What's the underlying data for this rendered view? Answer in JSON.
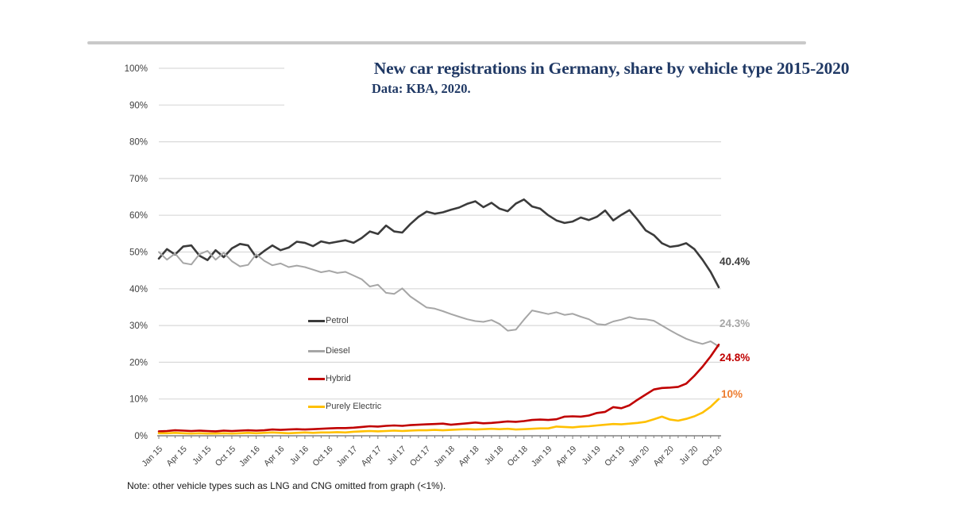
{
  "chart_data": {
    "type": "line",
    "title": "New car registrations in Germany, share by vehicle type 2015-2020",
    "subtitle": "Data: KBA, 2020.",
    "ylim": [
      0,
      100
    ],
    "grid": true,
    "legend_position": "center-left",
    "y_tick_labels": [
      "0%",
      "10%",
      "20%",
      "30%",
      "40%",
      "50%",
      "60%",
      "70%",
      "80%",
      "90%",
      "100%"
    ],
    "x_tick_labels": [
      "Jan 15",
      "Apr 15",
      "Jul 15",
      "Oct 15",
      "Jan 16",
      "Apr 16",
      "Jul 16",
      "Oct 16",
      "Jan 17",
      "Apr 17",
      "Jul 17",
      "Oct 17",
      "Jan 18",
      "Apr 18",
      "Jul 18",
      "Oct 18",
      "Jan 19",
      "Apr 19",
      "Jul 19",
      "Oct 19",
      "Jan 20",
      "Apr 20",
      "Jul 20",
      "Oct 20"
    ],
    "x_unit": "month",
    "series": [
      {
        "name": "Petrol",
        "color": "#3b3b3b",
        "end_label": "40.4%",
        "end_label_color": "#404040",
        "values": [
          48.2,
          50.8,
          49.3,
          51.5,
          51.8,
          49.0,
          47.8,
          50.5,
          48.6,
          51.0,
          52.2,
          51.8,
          48.6,
          50.3,
          51.8,
          50.5,
          51.2,
          52.8,
          52.5,
          51.6,
          52.9,
          52.4,
          52.8,
          53.2,
          52.5,
          53.8,
          55.6,
          54.9,
          57.2,
          55.6,
          55.3,
          57.6,
          59.6,
          61.0,
          60.4,
          60.8,
          61.5,
          62.1,
          63.1,
          63.8,
          62.2,
          63.4,
          61.8,
          61.1,
          63.2,
          64.3,
          62.4,
          61.8,
          60.0,
          58.6,
          57.9,
          58.3,
          59.4,
          58.7,
          59.6,
          61.3,
          58.6,
          60.1,
          61.4,
          58.8,
          55.9,
          54.6,
          52.4,
          51.4,
          51.7,
          52.4,
          50.8,
          47.9,
          44.6,
          40.4
        ]
      },
      {
        "name": "Diesel",
        "color": "#a6a6a6",
        "end_label": "24.3%",
        "end_label_color": "#a6a6a6",
        "values": [
          50.0,
          47.9,
          49.6,
          47.0,
          46.6,
          49.4,
          50.3,
          47.9,
          49.8,
          47.5,
          46.1,
          46.5,
          49.4,
          47.6,
          46.4,
          46.9,
          45.9,
          46.3,
          45.9,
          45.2,
          44.5,
          44.9,
          44.3,
          44.6,
          43.6,
          42.6,
          40.6,
          41.1,
          38.9,
          38.6,
          40.1,
          37.9,
          36.4,
          34.9,
          34.6,
          33.9,
          33.1,
          32.4,
          31.7,
          31.2,
          31.0,
          31.5,
          30.4,
          28.6,
          28.9,
          31.6,
          34.1,
          33.6,
          33.1,
          33.6,
          32.9,
          33.2,
          32.4,
          31.7,
          30.4,
          30.2,
          31.1,
          31.6,
          32.3,
          31.8,
          31.7,
          31.3,
          30.0,
          28.7,
          27.5,
          26.4,
          25.6,
          25.0,
          25.7,
          24.3
        ]
      },
      {
        "name": "Hybrid",
        "color": "#c00000",
        "end_label": "24.8%",
        "end_label_color": "#c00000",
        "values": [
          1.2,
          1.3,
          1.5,
          1.4,
          1.3,
          1.4,
          1.3,
          1.2,
          1.4,
          1.3,
          1.4,
          1.5,
          1.4,
          1.5,
          1.7,
          1.6,
          1.7,
          1.8,
          1.7,
          1.8,
          1.9,
          2.0,
          2.1,
          2.1,
          2.2,
          2.4,
          2.6,
          2.5,
          2.7,
          2.8,
          2.7,
          2.9,
          3.0,
          3.1,
          3.2,
          3.3,
          3.0,
          3.2,
          3.4,
          3.6,
          3.4,
          3.5,
          3.7,
          3.9,
          3.8,
          4.0,
          4.3,
          4.4,
          4.3,
          4.5,
          5.2,
          5.3,
          5.2,
          5.5,
          6.2,
          6.5,
          7.8,
          7.5,
          8.3,
          9.8,
          11.2,
          12.6,
          13.0,
          13.1,
          13.3,
          14.2,
          16.3,
          18.8,
          21.6,
          24.8
        ]
      },
      {
        "name": "Purely Electric",
        "color": "#ffc000",
        "end_label": "10%",
        "end_label_color": "#ed7d31",
        "values": [
          0.7,
          0.7,
          0.8,
          0.7,
          0.6,
          0.7,
          0.6,
          0.6,
          0.7,
          0.6,
          0.7,
          0.8,
          0.7,
          0.8,
          0.9,
          0.8,
          0.7,
          0.8,
          0.9,
          0.8,
          0.9,
          0.9,
          1.0,
          0.9,
          1.1,
          1.2,
          1.3,
          1.2,
          1.3,
          1.4,
          1.3,
          1.4,
          1.5,
          1.5,
          1.6,
          1.5,
          1.6,
          1.7,
          1.8,
          1.7,
          1.8,
          1.9,
          1.8,
          1.9,
          1.7,
          1.8,
          1.9,
          2.0,
          2.0,
          2.5,
          2.4,
          2.3,
          2.5,
          2.6,
          2.8,
          3.0,
          3.2,
          3.1,
          3.3,
          3.5,
          3.8,
          4.5,
          5.2,
          4.4,
          4.1,
          4.6,
          5.3,
          6.3,
          7.9,
          10.0
        ]
      }
    ]
  },
  "note": "Note: other vehicle types such as LNG and CNG omitted from graph (<1%)."
}
